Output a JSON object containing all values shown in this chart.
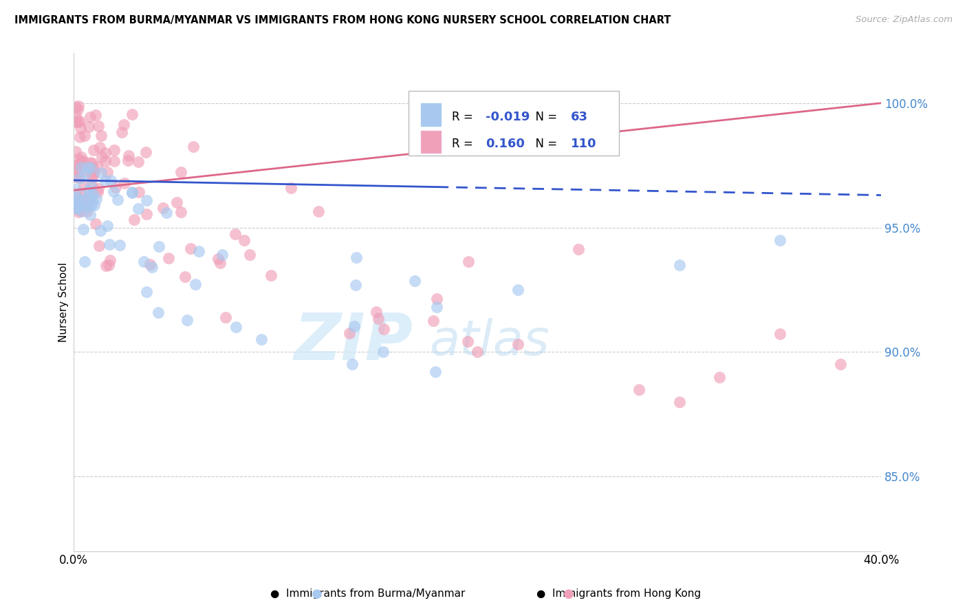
{
  "title": "IMMIGRANTS FROM BURMA/MYANMAR VS IMMIGRANTS FROM HONG KONG NURSERY SCHOOL CORRELATION CHART",
  "source": "Source: ZipAtlas.com",
  "ylabel": "Nursery School",
  "legend_blue_r": "-0.019",
  "legend_blue_n": "63",
  "legend_pink_r": "0.160",
  "legend_pink_n": "110",
  "legend_blue_label": "Immigrants from Burma/Myanmar",
  "legend_pink_label": "Immigrants from Hong Kong",
  "xlim": [
    0.0,
    0.4
  ],
  "ylim": [
    0.82,
    1.02
  ],
  "yticks": [
    0.85,
    0.9,
    0.95,
    1.0
  ],
  "ytick_labels": [
    "85.0%",
    "90.0%",
    "95.0%",
    "100.0%"
  ],
  "blue_color": "#a8c8f0",
  "pink_color": "#f0a0b8",
  "blue_line_color": "#3355cc",
  "pink_line_color": "#dd6688",
  "watermark_zip": "ZIP",
  "watermark_atlas": "atlas",
  "blue_line_solid_end": 0.18,
  "pink_line_x0": 0.0,
  "pink_line_y0": 0.965,
  "pink_line_x1": 0.4,
  "pink_line_y1": 1.0,
  "blue_line_x0": 0.0,
  "blue_line_y0": 0.969,
  "blue_line_x1": 0.4,
  "blue_line_y1": 0.963
}
